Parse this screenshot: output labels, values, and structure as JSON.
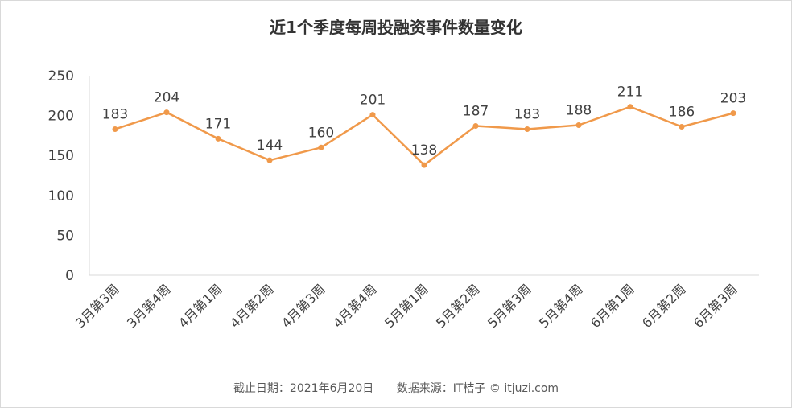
{
  "chart_data": {
    "type": "line",
    "title": "近1个季度每周投融资事件数量变化",
    "categories": [
      "3月第3周",
      "3月第4周",
      "4月第1周",
      "4月第2周",
      "4月第3周",
      "4月第4周",
      "5月第1周",
      "5月第2周",
      "5月第3周",
      "5月第4周",
      "6月第1周",
      "6月第2周",
      "6月第3周"
    ],
    "series": [
      {
        "values": [
          183,
          204,
          171,
          144,
          160,
          201,
          138,
          187,
          183,
          188,
          211,
          186,
          203
        ],
        "color": "#f0994a"
      }
    ],
    "ylim": [
      0,
      250
    ],
    "yticks": [
      0,
      50,
      100,
      150,
      200,
      250
    ],
    "grid": false,
    "data_labels": true,
    "xlabel": "",
    "ylabel": ""
  },
  "footer": {
    "date": "截止日期：2021年6月20日",
    "source": "数据来源：IT桔子 © itjuzi.com"
  }
}
